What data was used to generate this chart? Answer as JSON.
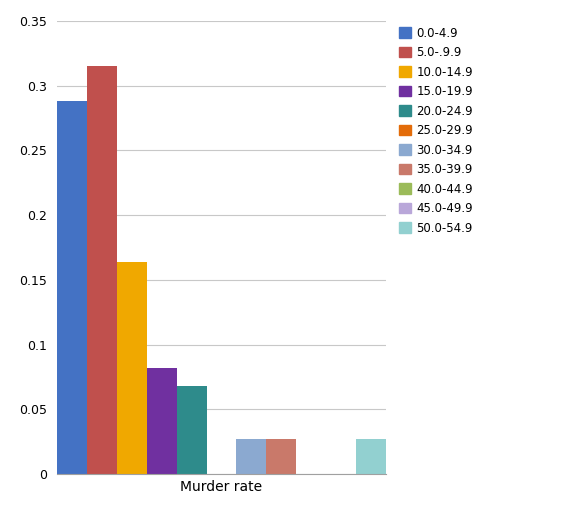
{
  "categories": [
    "0.0-4.9",
    "5.0-.9.9",
    "10.0-14.9",
    "15.0-19.9",
    "20.0-24.9",
    "25.0-29.9",
    "30.0-34.9",
    "35.0-39.9",
    "40.0-44.9",
    "45.0-49.9",
    "50.0-54.9"
  ],
  "values": [
    0.288,
    0.315,
    0.164,
    0.082,
    0.068,
    0.0,
    0.027,
    0.027,
    0.0,
    0.0,
    0.027
  ],
  "colors": [
    "#4472C4",
    "#C0504D",
    "#F0A800",
    "#7030A0",
    "#2E8B8B",
    "#E36C09",
    "#8BA9D0",
    "#C9796A",
    "#9BBB59",
    "#B9A7D9",
    "#92D0D0"
  ],
  "legend_labels": [
    "0.0-4.9",
    "5.0-.9.9",
    "10.0-14.9",
    "15.0-19.9",
    "20.0-24.9",
    "25.0-29.9",
    "30.0-34.9",
    "35.0-39.9",
    "40.0-44.9",
    "45.0-49.9",
    "50.0-54.9"
  ],
  "xlabel": "Murder rate",
  "ylim": [
    0,
    0.35
  ],
  "yticks": [
    0,
    0.05,
    0.1,
    0.15,
    0.2,
    0.25,
    0.3,
    0.35
  ],
  "background_color": "#ffffff",
  "grid_color": "#C8C8C8"
}
